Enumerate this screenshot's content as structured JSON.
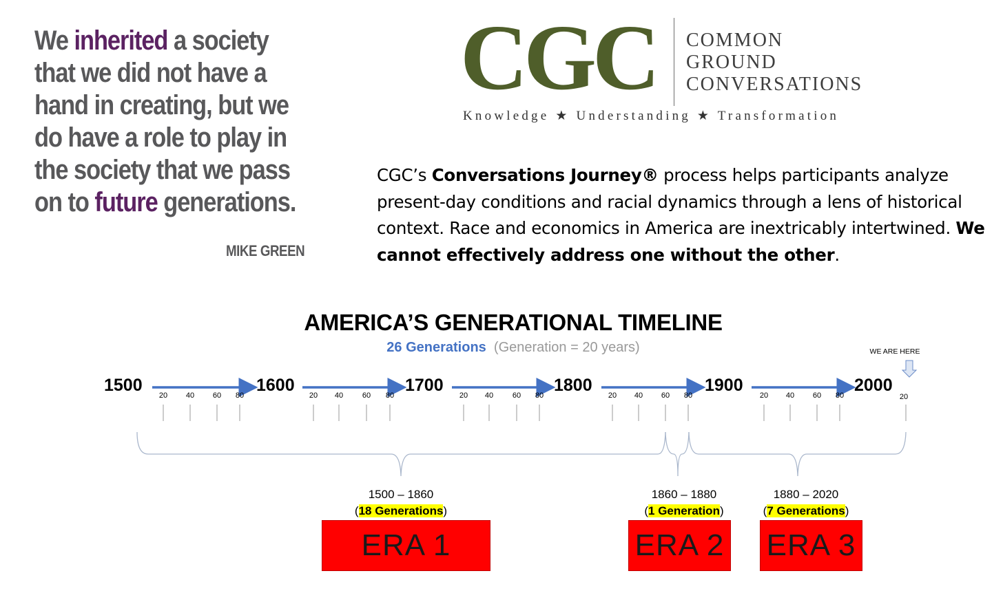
{
  "quote": {
    "line1_a": "We ",
    "line1_b": "inherited",
    "line1_c": " a society",
    "line2": "that we did not have a",
    "line3": "hand in creating, but we",
    "line4": "do have a role to play in",
    "line5": "the society that we pass",
    "line6_a": "on to ",
    "line6_b": "future",
    "line6_c": " generations.",
    "author": "MIKE GREEN",
    "highlight_color": "#5b2262"
  },
  "logo": {
    "mark": "CGC",
    "name_line1": "COMMON",
    "name_line2": "GROUND",
    "name_line3": "CONVERSATIONS",
    "tagline": "Knowledge ★ Understanding ★ Transformation",
    "color": "#4f5e2a"
  },
  "intro": {
    "part1": "CGC’s ",
    "bold1": "Conversations Journey®",
    "part2": " process helps participants analyze present-day conditions and racial dynamics through a lens of historical context. Race and economics in America are inextricably intertwined. ",
    "bold2": "We cannot effectively address one without the other",
    "part3": "."
  },
  "timeline": {
    "title": "AMERICA’S GENERATIONAL TIMELINE",
    "gen_count": "26 Generations",
    "gen_def": "(Generation = 20 years)",
    "you_are_here": "WE ARE HERE",
    "centuries": [
      "1500",
      "1600",
      "1700",
      "1800",
      "1900",
      "2000"
    ],
    "sub_ticks": [
      "20",
      "40",
      "60",
      "80"
    ],
    "final_tick": "20",
    "arrow_color": "#4472c4"
  },
  "eras": [
    {
      "label": "ERA 1",
      "range": "1500 – 1860",
      "generations": "18 Generations"
    },
    {
      "label": "ERA 2",
      "range": "1860 – 1880",
      "generations": "1 Generation"
    },
    {
      "label": "ERA 3",
      "range": "1880 – 2020",
      "generations": "7 Generations"
    }
  ]
}
